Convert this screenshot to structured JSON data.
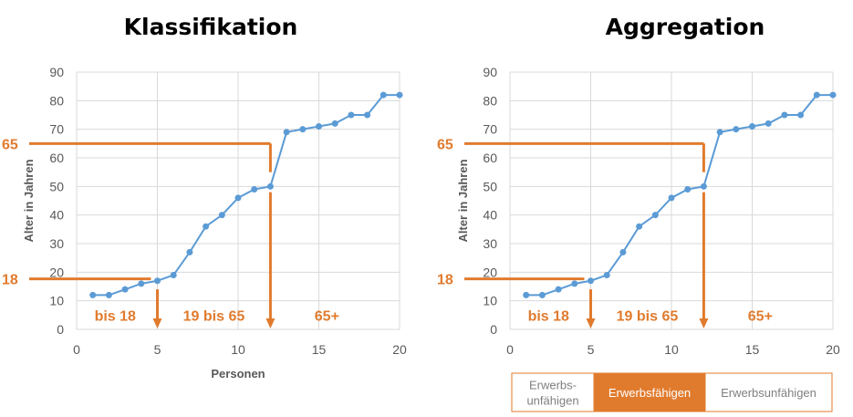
{
  "colors": {
    "series": "#5B9BD5",
    "accent": "#E07B2E",
    "grid": "#D9D9D9",
    "tick": "#595959",
    "legend_muted": "#7F7F7F",
    "legend_active_text": "#FFFFFF"
  },
  "chart_data": [
    {
      "type": "line",
      "title": "Klassifikation",
      "xlabel": "Personen",
      "ylabel": "Alter in Jahren",
      "xlim": [
        0,
        20
      ],
      "ylim": [
        0,
        90
      ],
      "xticks": [
        0,
        5,
        10,
        15,
        20
      ],
      "yticks": [
        0,
        10,
        20,
        30,
        40,
        50,
        60,
        70,
        80,
        90
      ],
      "grid": true,
      "x": [
        1,
        2,
        3,
        4,
        5,
        6,
        7,
        8,
        9,
        10,
        11,
        12,
        13,
        14,
        15,
        16,
        17,
        18,
        19,
        20
      ],
      "y": [
        12,
        12,
        14,
        16,
        17,
        19,
        27,
        36,
        40,
        46,
        49,
        50,
        69,
        70,
        71,
        72,
        75,
        75,
        82,
        82
      ],
      "thresholds": [
        {
          "label": "18",
          "value": 18,
          "x": 4.6
        },
        {
          "label": "65",
          "value": 65,
          "x": 12
        }
      ],
      "splits": [
        5,
        12
      ],
      "segments": [
        "bis 18",
        "19 bis 65",
        "65+"
      ]
    },
    {
      "type": "line",
      "title": "Aggregation",
      "xlabel": "",
      "ylabel": "Alter in Jahren",
      "xlim": [
        0,
        20
      ],
      "ylim": [
        0,
        90
      ],
      "xticks": [
        0,
        5,
        10,
        15,
        20
      ],
      "yticks": [
        0,
        10,
        20,
        30,
        40,
        50,
        60,
        70,
        80,
        90
      ],
      "grid": true,
      "x": [
        1,
        2,
        3,
        4,
        5,
        6,
        7,
        8,
        9,
        10,
        11,
        12,
        13,
        14,
        15,
        16,
        17,
        18,
        19,
        20
      ],
      "y": [
        12,
        12,
        14,
        16,
        17,
        19,
        27,
        36,
        40,
        46,
        49,
        50,
        69,
        70,
        71,
        72,
        75,
        75,
        82,
        82
      ],
      "thresholds": [
        {
          "label": "18",
          "value": 18,
          "x": 4.6
        },
        {
          "label": "65",
          "value": 65,
          "x": 12
        }
      ],
      "splits": [
        5,
        12
      ],
      "segments": [
        "bis 18",
        "19 bis 65",
        "65+"
      ],
      "legend": [
        {
          "lines": [
            "Erwerbs-",
            "unfähigen"
          ],
          "active": false
        },
        {
          "lines": [
            "Erwerbsfähigen"
          ],
          "active": true
        },
        {
          "lines": [
            "Erwerbsunfähigen"
          ],
          "active": false
        }
      ]
    }
  ]
}
